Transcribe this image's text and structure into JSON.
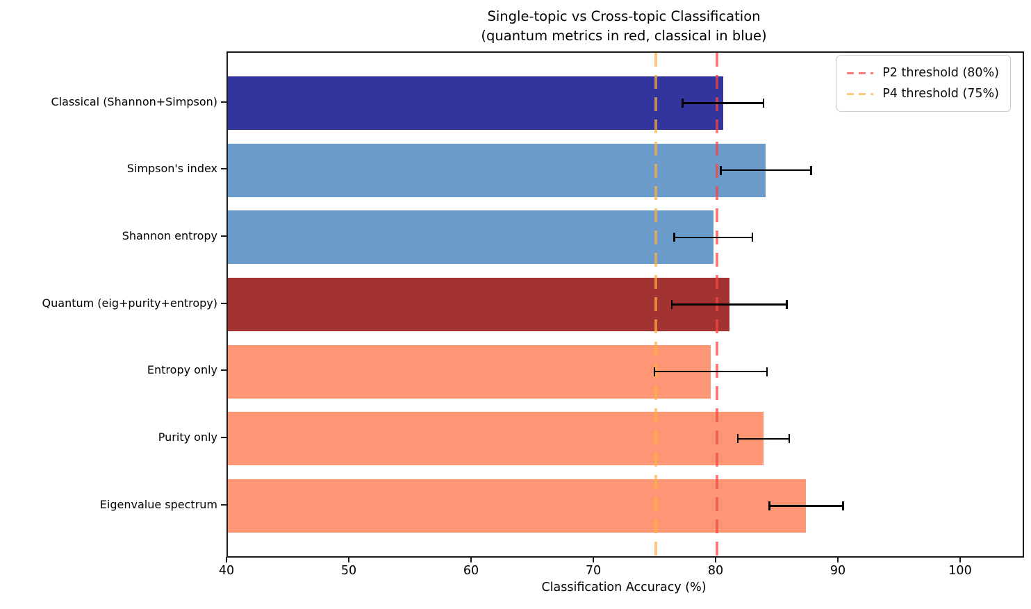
{
  "figure": {
    "background": "#ffffff"
  },
  "chart_data": {
    "type": "bar",
    "orientation": "horizontal",
    "title": "Single-topic vs Cross-topic Classification",
    "subtitle": "(quantum metrics in red, classical in blue)",
    "xlabel": "Classification Accuracy (%)",
    "xlim": [
      40,
      105
    ],
    "xticks": [
      40,
      50,
      60,
      70,
      80,
      90,
      100
    ],
    "grid": false,
    "legend_position": "upper right",
    "error_bar_color": "#000000",
    "bars": [
      {
        "label": "Classical (Shannon+Simpson)",
        "value": 80.5,
        "error": 3.3,
        "color": "#34349e",
        "group": "classical"
      },
      {
        "label": "Simpson's index",
        "value": 84.0,
        "error": 3.7,
        "color": "#6b9cc9",
        "group": "classical"
      },
      {
        "label": "Shannon entropy",
        "value": 79.7,
        "error": 3.2,
        "color": "#6b9cc9",
        "group": "classical"
      },
      {
        "label": "Quantum (eig+purity+entropy)",
        "value": 81.0,
        "error": 4.7,
        "color": "#a23331",
        "group": "quantum"
      },
      {
        "label": "Entropy only",
        "value": 79.5,
        "error": 4.6,
        "color": "#fd9674",
        "group": "quantum"
      },
      {
        "label": "Purity only",
        "value": 83.8,
        "error": 2.1,
        "color": "#fd9674",
        "group": "quantum"
      },
      {
        "label": "Eigenvalue spectrum",
        "value": 87.3,
        "error": 3.0,
        "color": "#fd9674",
        "group": "quantum"
      }
    ],
    "thresholds": [
      {
        "label": "P2 threshold (80%)",
        "value": 80,
        "line_color": "rgba(245,69,69,0.7)",
        "legend_color": "#f87d7d"
      },
      {
        "label": "P4 threshold (75%)",
        "value": 75,
        "line_color": "rgba(251,176,71,0.7)",
        "legend_color": "#fcc87e"
      }
    ]
  }
}
